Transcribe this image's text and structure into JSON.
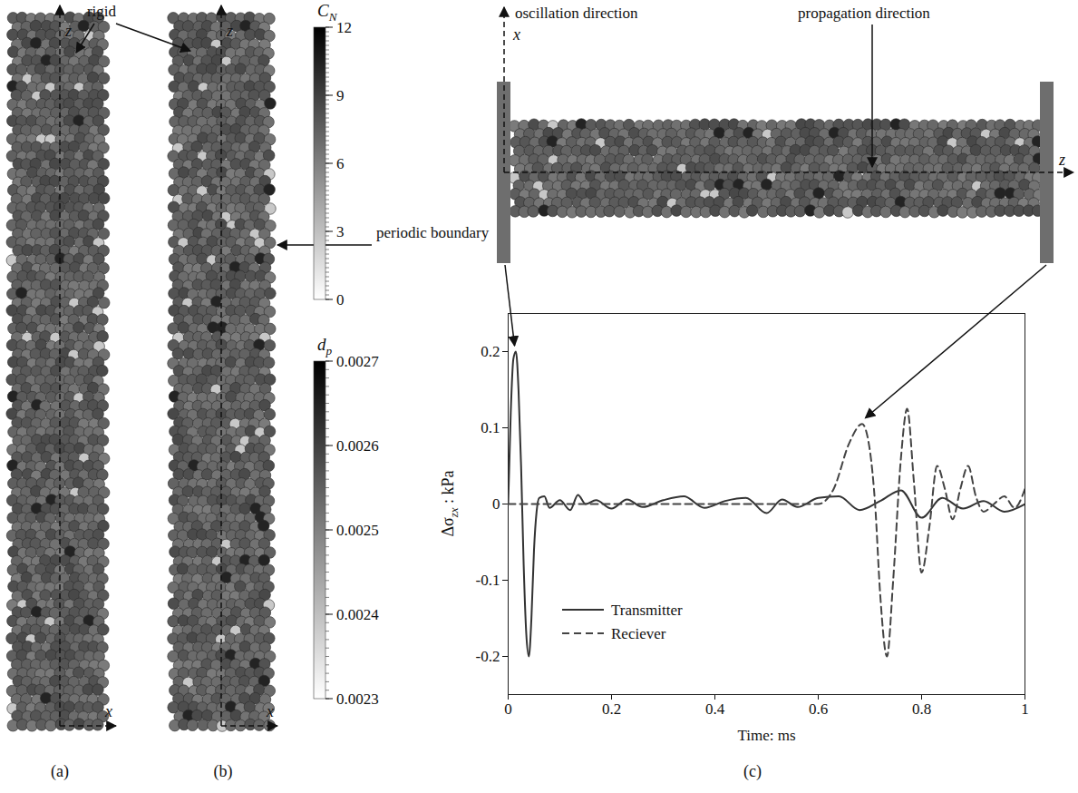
{
  "panel_labels": [
    "(a)",
    "(b)",
    "(c)"
  ],
  "annotations": {
    "rigid": "rigid",
    "periodic": "periodic boundary",
    "oscillation": "oscillation direction",
    "propagation": "propagation direction"
  },
  "axis_letters": {
    "z": "z",
    "x": "x"
  },
  "colorbars": [
    {
      "title": "CN",
      "range": [
        0,
        12
      ],
      "ticks": [
        0,
        3,
        6,
        9,
        12
      ]
    },
    {
      "title": "dp",
      "range": [
        0.0023,
        0.0027
      ],
      "ticks": [
        0.0023,
        0.0024,
        0.0025,
        0.0026,
        0.0027
      ]
    }
  ],
  "chart_data": {
    "type": "line",
    "xlabel": "Time: ms",
    "ylabel": "Δσzx : kPa",
    "xlim": [
      0,
      1
    ],
    "xticks": [
      0,
      0.2,
      0.4,
      0.6,
      0.8,
      1
    ],
    "ylim": [
      -0.25,
      0.25
    ],
    "yticks": [
      -0.2,
      -0.1,
      0,
      0.1,
      0.2
    ],
    "grid": false,
    "legend": "lower left",
    "series": [
      {
        "name": "Transmitter",
        "color": "#333333",
        "line_style": "solid",
        "x": [
          0,
          0.005,
          0.01,
          0.015,
          0.02,
          0.025,
          0.03,
          0.035,
          0.04,
          0.045,
          0.05,
          0.055,
          0.06,
          0.07,
          0.08,
          0.1,
          0.12,
          0.135,
          0.15,
          0.17,
          0.2,
          0.23,
          0.26,
          0.3,
          0.34,
          0.38,
          0.42,
          0.46,
          0.5,
          0.53,
          0.56,
          0.6,
          0.64,
          0.68,
          0.72,
          0.76,
          0.8,
          0.84,
          0.88,
          0.92,
          0.96,
          1.0
        ],
        "values": [
          0,
          0.12,
          0.19,
          0.2,
          0.15,
          0.05,
          -0.08,
          -0.17,
          -0.2,
          -0.15,
          -0.06,
          -0.01,
          0.008,
          0.01,
          -0.005,
          0.005,
          -0.008,
          0.012,
          0,
          0.005,
          -0.006,
          0.006,
          -0.004,
          0.005,
          0.01,
          -0.005,
          0.004,
          0.008,
          -0.012,
          0.006,
          -0.004,
          0.008,
          0.01,
          -0.008,
          0.004,
          0.018,
          -0.018,
          0.008,
          -0.006,
          0.004,
          -0.01,
          0
        ]
      },
      {
        "name": "Reciever",
        "color": "#444444",
        "line_style": "dashed",
        "x": [
          0,
          0.6,
          0.63,
          0.66,
          0.685,
          0.7,
          0.71,
          0.72,
          0.733,
          0.745,
          0.76,
          0.772,
          0.785,
          0.8,
          0.815,
          0.83,
          0.845,
          0.86,
          0.875,
          0.89,
          0.905,
          0.92,
          0.94,
          0.96,
          0.98,
          1.0
        ],
        "values": [
          0,
          0,
          0.02,
          0.08,
          0.105,
          0.07,
          0,
          -0.12,
          -0.2,
          -0.1,
          0.06,
          0.125,
          0.03,
          -0.09,
          -0.03,
          0.05,
          0.02,
          -0.02,
          0.02,
          0.05,
          0.01,
          -0.01,
          0,
          0.01,
          -0.005,
          0.02
        ]
      }
    ]
  }
}
